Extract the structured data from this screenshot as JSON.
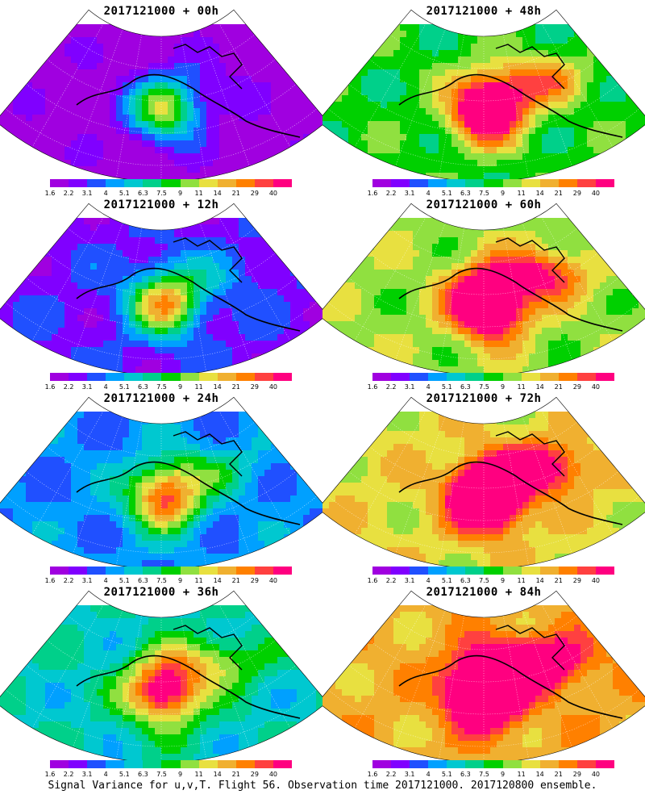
{
  "panels": [
    {
      "title": "2017121000 + 00h",
      "intensity": 0.1
    },
    {
      "title": "2017121000 + 48h",
      "intensity": 0.62
    },
    {
      "title": "2017121000 + 12h",
      "intensity": 0.22
    },
    {
      "title": "2017121000 + 60h",
      "intensity": 0.72
    },
    {
      "title": "2017121000 + 24h",
      "intensity": 0.34
    },
    {
      "title": "2017121000 + 72h",
      "intensity": 0.8
    },
    {
      "title": "2017121000 + 36h",
      "intensity": 0.48
    },
    {
      "title": "2017121000 + 84h",
      "intensity": 0.88
    }
  ],
  "colorbar": {
    "colors": [
      "#a000e0",
      "#8000ff",
      "#2050ff",
      "#00a0ff",
      "#00c8d0",
      "#00d08a",
      "#00d000",
      "#90e040",
      "#e8e040",
      "#f0b030",
      "#ff8000",
      "#ff4040",
      "#ff0080"
    ],
    "labels": [
      "1.6",
      "2.2",
      "3.1",
      "4",
      "5.1",
      "6.3",
      "7.5",
      "9",
      "11",
      "14",
      "21",
      "29",
      "40"
    ]
  },
  "caption": "Signal Variance for u,v,T. Flight 56. Observation time 2017121000. 2017120800 ensemble."
}
